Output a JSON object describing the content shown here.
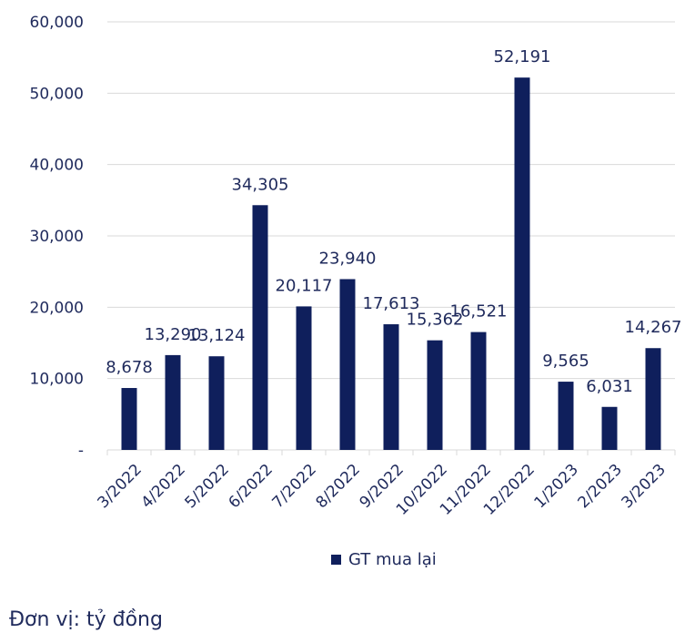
{
  "chart_data": {
    "type": "bar",
    "categories": [
      "3/2022",
      "4/2022",
      "5/2022",
      "6/2022",
      "7/2022",
      "8/2022",
      "9/2022",
      "10/2022",
      "11/2022",
      "12/2022",
      "1/2023",
      "2/2023",
      "3/2023"
    ],
    "series": [
      {
        "name": "GT mua lại",
        "values": [
          8678,
          13290,
          13124,
          34305,
          20117,
          23940,
          17613,
          15362,
          16521,
          52191,
          9565,
          6031,
          14267
        ]
      }
    ],
    "data_labels": [
      "8,678",
      "13,290",
      "13,124",
      "34,305",
      "20,117",
      "23,940",
      "17,613",
      "15,362",
      "16,521",
      "52,191",
      "9,565",
      "6,031",
      "14,267"
    ],
    "y_ticks": [
      0,
      10000,
      20000,
      30000,
      40000,
      50000,
      60000
    ],
    "y_tick_labels": [
      "-",
      "10,000",
      "20,000",
      "30,000",
      "40,000",
      "50,000",
      "60,000"
    ],
    "ylim": [
      0,
      60000
    ],
    "grid": true,
    "legend_position": "bottom",
    "bar_color": "#0f1f5c",
    "grid_color": "#d9d9d9"
  },
  "legend": {
    "label": "GT mua lại"
  },
  "unit_note": "Đơn vị: tỷ đồng"
}
